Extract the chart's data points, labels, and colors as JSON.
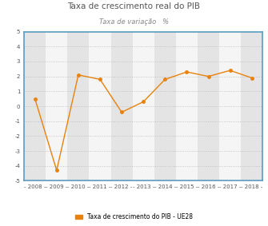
{
  "title": "Taxa de crescimento real do PIB",
  "subtitle": "Taxa de variação   %",
  "legend_label": "Taxa de crescimento do PIB - UE28",
  "years": [
    2008,
    2009,
    2010,
    2011,
    2012,
    2013,
    2014,
    2015,
    2016,
    2017,
    2018
  ],
  "values": [
    0.5,
    -4.3,
    2.1,
    1.8,
    -0.4,
    0.3,
    1.8,
    2.3,
    2.0,
    2.4,
    1.9
  ],
  "line_color": "#E8820C",
  "marker_color": "#E8820C",
  "ylim": [
    -5,
    5
  ],
  "yticks": [
    -4,
    -3,
    -2,
    -1,
    0,
    1,
    2,
    3,
    4
  ],
  "background_color": "#ffffff",
  "band_color_light": "#e4e4e4",
  "band_color_white": "#f5f5f5",
  "grid_color": "#bbbbbb",
  "border_color": "#5b9bc0",
  "title_fontsize": 7.5,
  "subtitle_fontsize": 6,
  "tick_fontsize": 5,
  "legend_fontsize": 5.5
}
